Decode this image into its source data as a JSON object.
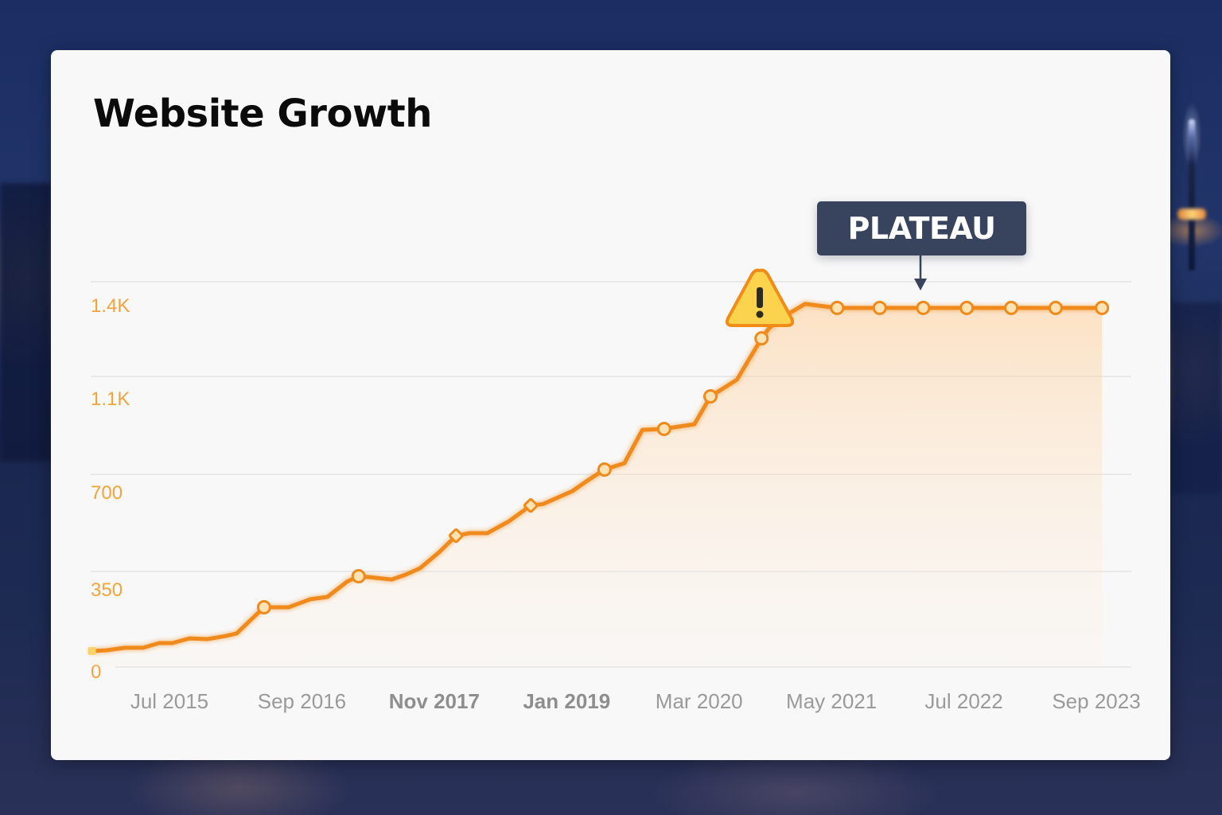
{
  "title": "Website Growth",
  "annotation": {
    "label": "PLATEAU",
    "warning_icon": "warning-triangle-icon"
  },
  "colors": {
    "line": "#f08a1c",
    "marker_fill": "#fde3b3",
    "axis_label": "#f3a43a",
    "x_label": "#9a9a9a",
    "annotation_bg": "#38435e",
    "warning_fill": "#fcd34d",
    "warning_stroke": "#f28c18"
  },
  "chart_data": {
    "type": "line",
    "title": "Website Growth",
    "xlabel": "",
    "ylabel": "",
    "y_ticks": [
      {
        "label": "0",
        "value": 0
      },
      {
        "label": "350",
        "value": 350
      },
      {
        "label": "700",
        "value": 700
      },
      {
        "label": "1.1K",
        "value": 1100
      },
      {
        "label": "1.4K",
        "value": 1400
      }
    ],
    "x_ticks": [
      {
        "label": "Jul 2015",
        "month": 6
      },
      {
        "label": "Sep 2016",
        "month": 20
      },
      {
        "label": "Nov 2017",
        "month": 34
      },
      {
        "label": "Jan 2019",
        "month": 48
      },
      {
        "label": "Mar 2020",
        "month": 62
      },
      {
        "label": "May 2021",
        "month": 76
      },
      {
        "label": "Jul 2022",
        "month": 90
      },
      {
        "label": "Sep 2023",
        "month": 104
      }
    ],
    "ylim": [
      0,
      1400
    ],
    "grid": true,
    "legend": null,
    "annotations": [
      {
        "text": "PLATEAU",
        "at": "Feb 2022",
        "value": 1390
      },
      {
        "text": "warning",
        "at": "Sep 2020",
        "value": 1290
      }
    ],
    "series": [
      {
        "name": "Website Growth",
        "points": [
          {
            "date": "Nov 2014",
            "month": -2.2,
            "value": 85,
            "marker": "square"
          },
          {
            "date": "Dec 2014",
            "month": -0.7,
            "value": 88
          },
          {
            "date": "Feb 2015",
            "month": 1.3,
            "value": 99
          },
          {
            "date": "Apr 2015",
            "month": 3.2,
            "value": 99
          },
          {
            "date": "May 2015",
            "month": 4.9,
            "value": 119
          },
          {
            "date": "Jul 2015",
            "month": 6.3,
            "value": 119
          },
          {
            "date": "Sep 2015",
            "month": 8.1,
            "value": 139
          },
          {
            "date": "Nov 2015",
            "month": 10.0,
            "value": 136
          },
          {
            "date": "Dec 2015",
            "month": 11.9,
            "value": 149
          },
          {
            "date": "Feb 2016",
            "month": 13.1,
            "value": 160
          },
          {
            "date": "May 2016",
            "month": 16.0,
            "value": 272,
            "marker": "circle"
          },
          {
            "date": "Jul 2016",
            "month": 18.6,
            "value": 272
          },
          {
            "date": "Sep 2016",
            "month": 20.9,
            "value": 306
          },
          {
            "date": "Nov 2016",
            "month": 22.7,
            "value": 316
          },
          {
            "date": "Jan 2017",
            "month": 24.8,
            "value": 377
          },
          {
            "date": "Mar 2017",
            "month": 26.0,
            "value": 396,
            "marker": "circle"
          },
          {
            "date": "Apr 2017",
            "month": 27.0,
            "value": 393
          },
          {
            "date": "Jun 2017",
            "month": 29.5,
            "value": 384
          },
          {
            "date": "Aug 2017",
            "month": 31.0,
            "value": 402
          },
          {
            "date": "Sep 2017",
            "month": 32.5,
            "value": 425
          },
          {
            "date": "Nov 2017",
            "month": 34.6,
            "value": 485
          },
          {
            "date": "Jan 2018",
            "month": 36.3,
            "value": 542,
            "marker": "diamond"
          },
          {
            "date": "Feb 2018",
            "month": 37.7,
            "value": 551
          },
          {
            "date": "Apr 2018",
            "month": 39.6,
            "value": 551
          },
          {
            "date": "Jun 2018",
            "month": 41.9,
            "value": 594
          },
          {
            "date": "Sep 2018",
            "month": 44.2,
            "value": 651,
            "marker": "diamond"
          },
          {
            "date": "Oct 2018",
            "month": 45.5,
            "value": 656
          },
          {
            "date": "Jan 2019",
            "month": 48.6,
            "value": 703
          },
          {
            "date": "Mar 2019",
            "month": 50.3,
            "value": 751
          },
          {
            "date": "May 2019",
            "month": 52.0,
            "value": 795,
            "marker": "circle"
          },
          {
            "date": "Jul 2019",
            "month": 54.1,
            "value": 822
          },
          {
            "date": "Sep 2019",
            "month": 56.0,
            "value": 964
          },
          {
            "date": "Nov 2019",
            "month": 58.3,
            "value": 968,
            "marker": "circle"
          },
          {
            "date": "Feb 2020",
            "month": 61.5,
            "value": 988
          },
          {
            "date": "Apr 2020",
            "month": 63.2,
            "value": 1105,
            "marker": "circle"
          },
          {
            "date": "Jul 2020",
            "month": 66.0,
            "value": 1159
          },
          {
            "date": "Sep 2020",
            "month": 68.6,
            "value": 1292,
            "marker": "circle"
          },
          {
            "date": "Oct 2020",
            "month": 69.4,
            "value": 1325
          },
          {
            "date": "Dec 2020",
            "month": 71.5,
            "value": 1372
          },
          {
            "date": "Feb 2021",
            "month": 73.2,
            "value": 1403
          },
          {
            "date": "May 2021",
            "month": 76.6,
            "value": 1390,
            "marker": "circle"
          },
          {
            "date": "Oct 2021",
            "month": 81.1,
            "value": 1390,
            "marker": "circle"
          },
          {
            "date": "Feb 2022",
            "month": 85.7,
            "value": 1390,
            "marker": "circle"
          },
          {
            "date": "Jul 2022",
            "month": 90.3,
            "value": 1390,
            "marker": "circle"
          },
          {
            "date": "Dec 2022",
            "month": 95.0,
            "value": 1390,
            "marker": "circle"
          },
          {
            "date": "Apr 2023",
            "month": 99.7,
            "value": 1390,
            "marker": "circle"
          },
          {
            "date": "Sep 2023",
            "month": 104.6,
            "value": 1390,
            "marker": "circle"
          }
        ]
      }
    ]
  }
}
